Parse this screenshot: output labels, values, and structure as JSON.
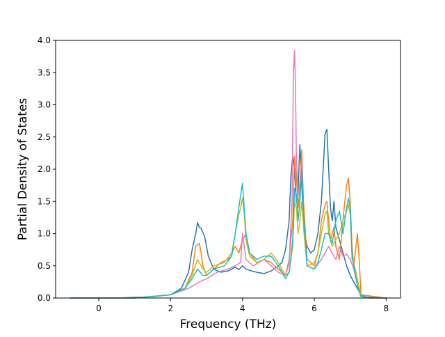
{
  "chart_data": {
    "type": "line",
    "title": "",
    "xlabel": "Frequency (THz)",
    "ylabel": "Partial Density of States",
    "xlim": [
      -1.2,
      8.4
    ],
    "ylim": [
      0,
      4.0
    ],
    "xticks": [
      "0",
      "2",
      "4",
      "6",
      "8"
    ],
    "yticks": [
      "0.0",
      "0.5",
      "1.0",
      "1.5",
      "2.0",
      "2.5",
      "3.0",
      "3.5",
      "4.0"
    ],
    "grid": false,
    "legend": "none",
    "series": [
      {
        "color": "#1f77b4",
        "x": [
          -0.8,
          0,
          0.5,
          1,
          1.5,
          2,
          2.3,
          2.5,
          2.6,
          2.7,
          2.75,
          2.8,
          2.85,
          2.95,
          3.05,
          3.2,
          3.4,
          3.6,
          3.8,
          3.9,
          4,
          4.1,
          4.25,
          4.4,
          4.6,
          4.8,
          5,
          5.1,
          5.2,
          5.3,
          5.35,
          5.4,
          5.45,
          5.5,
          5.55,
          5.6,
          5.65,
          5.7,
          5.8,
          5.9,
          6,
          6.1,
          6.2,
          6.3,
          6.35,
          6.4,
          6.45,
          6.5,
          6.55,
          6.6,
          6.7,
          6.8,
          6.9,
          7,
          7.1,
          7.2,
          7.3,
          7.5,
          8
        ],
        "y": [
          0,
          0,
          0,
          0.01,
          0.02,
          0.05,
          0.15,
          0.4,
          0.75,
          1.0,
          1.17,
          1.1,
          1.08,
          0.95,
          0.65,
          0.45,
          0.4,
          0.42,
          0.48,
          0.44,
          0.5,
          0.45,
          0.42,
          0.4,
          0.38,
          0.42,
          0.5,
          0.55,
          0.75,
          1.2,
          1.9,
          2.2,
          2.0,
          1.5,
          1.7,
          2.38,
          1.8,
          1.1,
          0.8,
          0.7,
          0.75,
          1.0,
          1.5,
          2.55,
          2.62,
          2.0,
          1.4,
          1.2,
          1.5,
          1.1,
          0.9,
          0.7,
          0.5,
          0.35,
          0.25,
          0.15,
          0.05,
          0,
          0
        ]
      },
      {
        "color": "#ff7f0e",
        "x": [
          -0.8,
          0,
          1,
          2,
          2.4,
          2.6,
          2.7,
          2.8,
          2.85,
          2.9,
          3,
          3.2,
          3.4,
          3.6,
          3.8,
          3.9,
          4,
          4.1,
          4.2,
          4.4,
          4.6,
          4.8,
          5,
          5.2,
          5.3,
          5.4,
          5.45,
          5.5,
          5.55,
          5.6,
          5.65,
          5.7,
          5.8,
          6,
          6.1,
          6.2,
          6.3,
          6.35,
          6.4,
          6.45,
          6.5,
          6.55,
          6.6,
          6.7,
          6.8,
          6.85,
          6.9,
          6.95,
          7,
          7.05,
          7.1,
          7.2,
          7.25,
          7.3,
          8
        ],
        "y": [
          0,
          0,
          0,
          0.05,
          0.15,
          0.4,
          0.8,
          0.85,
          0.7,
          0.5,
          0.35,
          0.45,
          0.55,
          0.6,
          0.8,
          0.7,
          0.9,
          1.0,
          0.7,
          0.55,
          0.6,
          0.55,
          0.45,
          0.35,
          0.6,
          1.2,
          2.2,
          1.9,
          1.4,
          1.7,
          2.3,
          1.5,
          0.6,
          0.5,
          0.7,
          1.2,
          1.45,
          1.5,
          1.2,
          0.9,
          1.0,
          1.1,
          0.8,
          0.6,
          1.2,
          1.5,
          1.75,
          1.86,
          1.5,
          0.8,
          0.5,
          1.0,
          0.6,
          0.05,
          0
        ]
      },
      {
        "color": "#e377c2",
        "x": [
          -0.8,
          0,
          1,
          2,
          2.5,
          2.8,
          3,
          3.3,
          3.6,
          3.8,
          3.95,
          4,
          4.1,
          4.3,
          4.6,
          4.8,
          5,
          5.2,
          5.3,
          5.38,
          5.42,
          5.45,
          5.48,
          5.5,
          5.55,
          5.6,
          5.65,
          5.7,
          5.8,
          6,
          6.2,
          6.4,
          6.5,
          6.6,
          6.7,
          6.8,
          6.9,
          7,
          7.1,
          7.2,
          7.3,
          8
        ],
        "y": [
          0,
          0,
          0,
          0.05,
          0.15,
          0.25,
          0.3,
          0.4,
          0.45,
          0.5,
          0.55,
          1.0,
          0.6,
          0.5,
          0.6,
          0.5,
          0.4,
          0.35,
          0.55,
          1.5,
          3.5,
          3.84,
          3.2,
          2.2,
          1.6,
          1.8,
          2.1,
          1.1,
          0.5,
          0.45,
          0.6,
          0.8,
          0.7,
          0.6,
          0.8,
          0.65,
          0.68,
          0.6,
          0.45,
          0.2,
          0.02,
          0
        ]
      },
      {
        "color": "#bcbd22",
        "x": [
          -0.8,
          0,
          1,
          2,
          2.4,
          2.6,
          2.75,
          2.9,
          3,
          3.2,
          3.5,
          3.7,
          3.8,
          3.9,
          3.95,
          4,
          4.05,
          4.1,
          4.2,
          4.4,
          4.6,
          4.8,
          5,
          5.2,
          5.3,
          5.4,
          5.45,
          5.5,
          5.55,
          5.6,
          5.65,
          5.7,
          5.8,
          6,
          6.1,
          6.2,
          6.3,
          6.35,
          6.4,
          6.5,
          6.6,
          6.7,
          6.8,
          6.9,
          6.95,
          7,
          7.05,
          7.1,
          7.2,
          7.3,
          8
        ],
        "y": [
          0,
          0,
          0,
          0.05,
          0.15,
          0.35,
          0.6,
          0.45,
          0.4,
          0.5,
          0.55,
          0.7,
          1.0,
          1.3,
          1.4,
          1.55,
          1.3,
          0.9,
          0.65,
          0.55,
          0.6,
          0.7,
          0.55,
          0.35,
          0.4,
          0.8,
          1.5,
          1.4,
          1.0,
          1.2,
          1.5,
          1.1,
          0.5,
          0.55,
          0.7,
          1.0,
          1.3,
          1.35,
          1.0,
          0.8,
          0.9,
          1.0,
          1.2,
          1.35,
          1.45,
          1.3,
          0.6,
          0.55,
          0.3,
          0.02,
          0
        ]
      },
      {
        "color": "#17becf",
        "x": [
          -0.8,
          0,
          1,
          2,
          2.4,
          2.6,
          2.75,
          2.9,
          3,
          3.2,
          3.5,
          3.7,
          3.8,
          3.9,
          3.95,
          4,
          4.05,
          4.1,
          4.2,
          4.4,
          4.6,
          4.8,
          5,
          5.2,
          5.3,
          5.4,
          5.45,
          5.5,
          5.55,
          5.6,
          5.65,
          5.7,
          5.8,
          6,
          6.1,
          6.2,
          6.3,
          6.4,
          6.5,
          6.6,
          6.7,
          6.8,
          6.9,
          6.95,
          7,
          7.05,
          7.1,
          7.2,
          7.3,
          8
        ],
        "y": [
          0,
          0,
          0,
          0.05,
          0.15,
          0.3,
          0.45,
          0.35,
          0.35,
          0.45,
          0.5,
          0.65,
          1.0,
          1.4,
          1.6,
          1.78,
          1.4,
          1.0,
          0.7,
          0.6,
          0.65,
          0.65,
          0.5,
          0.3,
          0.4,
          0.9,
          1.7,
          1.6,
          1.2,
          1.5,
          2.0,
          1.3,
          0.5,
          0.45,
          0.55,
          0.75,
          1.0,
          1.0,
          0.85,
          1.2,
          1.35,
          1.0,
          1.4,
          1.55,
          1.4,
          0.7,
          0.5,
          0.2,
          0.02,
          0
        ]
      }
    ]
  }
}
